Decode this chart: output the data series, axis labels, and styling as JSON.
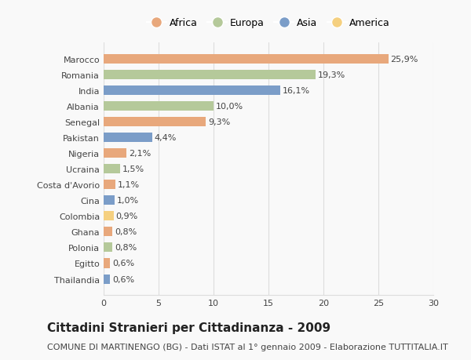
{
  "countries": [
    "Marocco",
    "Romania",
    "India",
    "Albania",
    "Senegal",
    "Pakistan",
    "Nigeria",
    "Ucraina",
    "Costa d'Avorio",
    "Cina",
    "Colombia",
    "Ghana",
    "Polonia",
    "Egitto",
    "Thailandia"
  ],
  "values": [
    25.9,
    19.3,
    16.1,
    10.0,
    9.3,
    4.4,
    2.1,
    1.5,
    1.1,
    1.0,
    0.9,
    0.8,
    0.8,
    0.6,
    0.6
  ],
  "labels": [
    "25,9%",
    "19,3%",
    "16,1%",
    "10,0%",
    "9,3%",
    "4,4%",
    "2,1%",
    "1,5%",
    "1,1%",
    "1,0%",
    "0,9%",
    "0,8%",
    "0,8%",
    "0,6%",
    "0,6%"
  ],
  "continents": [
    "Africa",
    "Europa",
    "Asia",
    "Europa",
    "Africa",
    "Asia",
    "Africa",
    "Europa",
    "Africa",
    "Asia",
    "America",
    "Africa",
    "Europa",
    "Africa",
    "Asia"
  ],
  "continent_colors": {
    "Africa": "#E8A87C",
    "Europa": "#B5C99A",
    "Asia": "#7B9DC8",
    "America": "#F5D080"
  },
  "legend_order": [
    "Africa",
    "Europa",
    "Asia",
    "America"
  ],
  "title": "Cittadini Stranieri per Cittadinanza - 2009",
  "subtitle": "COMUNE DI MARTINENGO (BG) - Dati ISTAT al 1° gennaio 2009 - Elaborazione TUTTITALIA.IT",
  "xlim": [
    0,
    30
  ],
  "xticks": [
    0,
    5,
    10,
    15,
    20,
    25,
    30
  ],
  "background_color": "#f9f9f9",
  "grid_color": "#dddddd",
  "title_fontsize": 11,
  "subtitle_fontsize": 8,
  "bar_label_fontsize": 8,
  "tick_fontsize": 8,
  "legend_fontsize": 9
}
